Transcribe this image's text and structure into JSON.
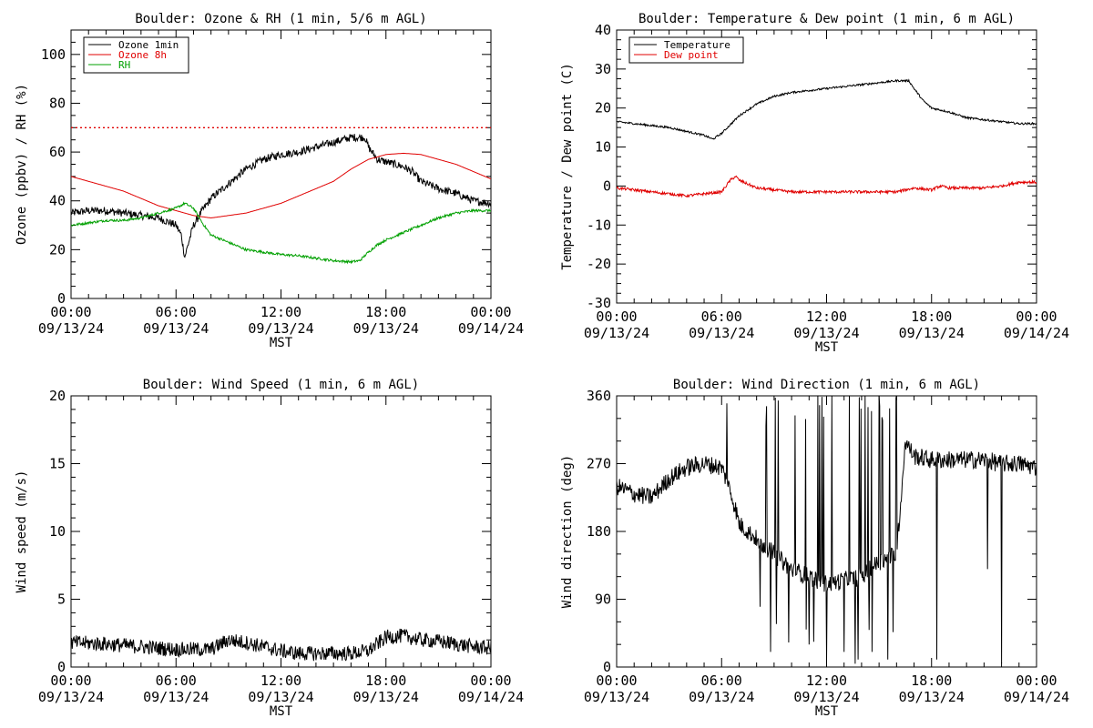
{
  "xlabel": "MST",
  "chart_data": [
    {
      "id": "ozone",
      "type": "line",
      "title": "Boulder: Ozone & RH (1 min, 5/6 m AGL)",
      "ylabel": "Ozone (ppbv) / RH (%)",
      "xlabel": "MST",
      "xlim": [
        0,
        24
      ],
      "ylim": [
        0,
        110
      ],
      "yticks": [
        0,
        20,
        40,
        60,
        80,
        100
      ],
      "xtick_labels": [
        [
          "00:00",
          "09/13/24"
        ],
        [
          "06:00",
          "09/13/24"
        ],
        [
          "12:00",
          "09/13/24"
        ],
        [
          "18:00",
          "09/13/24"
        ],
        [
          "00:00",
          "09/14/24"
        ]
      ],
      "reference_line": {
        "y": 70,
        "color": "#e00000",
        "style": "dotted"
      },
      "legend": {
        "position": "top-left",
        "entries": [
          {
            "label": "Ozone 1min",
            "color": "#000000"
          },
          {
            "label": "Ozone 8h",
            "color": "#e00000"
          },
          {
            "label": "RH",
            "color": "#00a000"
          }
        ]
      },
      "series": [
        {
          "name": "Ozone 1min",
          "color": "#000000",
          "noise": 1.6,
          "x": [
            0,
            1,
            2,
            3,
            4,
            5,
            6,
            6.3,
            6.5,
            6.8,
            7,
            7.5,
            8,
            9,
            10,
            11,
            12,
            13,
            14,
            15,
            16,
            16.8,
            17,
            17.5,
            18,
            18.5,
            19,
            19.5,
            20,
            21,
            22,
            23,
            24
          ],
          "y": [
            35,
            36,
            36,
            35,
            34,
            33,
            30,
            26,
            17,
            25,
            30,
            36,
            41,
            47,
            53,
            57,
            59,
            60,
            62,
            64,
            66,
            66,
            62,
            57,
            56,
            55,
            54,
            52,
            48,
            45,
            43,
            40,
            39
          ]
        },
        {
          "name": "Ozone 8h",
          "color": "#e00000",
          "noise": 0,
          "x": [
            0,
            1,
            2,
            3,
            4,
            5,
            6,
            6.5,
            7,
            8,
            9,
            10,
            11,
            12,
            13,
            14,
            15,
            16,
            17,
            18,
            19,
            20,
            21,
            22,
            23,
            24
          ],
          "y": [
            50,
            48,
            46,
            44,
            41,
            38,
            36,
            35,
            34,
            33,
            34,
            35,
            37,
            39,
            42,
            45,
            48,
            53,
            57,
            59,
            59.5,
            59,
            57,
            55,
            52,
            49
          ]
        },
        {
          "name": "RH",
          "color": "#00a000",
          "noise": 0.5,
          "x": [
            0,
            1,
            2,
            3,
            4,
            5,
            5.5,
            6,
            6.5,
            7,
            7.5,
            8,
            9,
            10,
            11,
            12,
            13,
            14,
            15,
            16,
            16.5,
            17,
            17.5,
            18,
            19,
            20,
            21,
            22,
            23,
            24
          ],
          "y": [
            30,
            31,
            32,
            32,
            33,
            35,
            36,
            37,
            39,
            37,
            31,
            26,
            23,
            20,
            19,
            18,
            17.5,
            16.5,
            15.5,
            15,
            15.5,
            19,
            22,
            24,
            27,
            30,
            33,
            35,
            36,
            36
          ]
        }
      ]
    },
    {
      "id": "temp",
      "type": "line",
      "title": "Boulder: Temperature & Dew point (1 min, 6 m AGL)",
      "ylabel": "Temperature / Dew point (C)",
      "xlabel": "MST",
      "xlim": [
        0,
        24
      ],
      "ylim": [
        -30,
        40
      ],
      "yticks": [
        -30,
        -20,
        -10,
        0,
        10,
        20,
        30,
        40
      ],
      "xtick_labels": [
        [
          "00:00",
          "09/13/24"
        ],
        [
          "06:00",
          "09/13/24"
        ],
        [
          "12:00",
          "09/13/24"
        ],
        [
          "18:00",
          "09/13/24"
        ],
        [
          "00:00",
          "09/14/24"
        ]
      ],
      "legend": {
        "position": "top-left",
        "entries": [
          {
            "label": "Temperature",
            "color": "#000000"
          },
          {
            "label": "Dew point",
            "color": "#e00000"
          }
        ]
      },
      "series": [
        {
          "name": "Temperature",
          "color": "#000000",
          "noise": 0.25,
          "x": [
            0,
            1,
            2,
            3,
            4,
            5,
            5.5,
            6,
            7,
            8,
            9,
            10,
            11,
            12,
            13,
            14,
            15,
            16,
            16.7,
            17,
            17.5,
            18,
            19,
            20,
            21,
            22,
            23,
            24
          ],
          "y": [
            16.5,
            16,
            15.5,
            15,
            14,
            13,
            12,
            13.5,
            18,
            21,
            23,
            24,
            24.5,
            25,
            25.5,
            26,
            26.5,
            27,
            27,
            25,
            22,
            20,
            19,
            17.5,
            17,
            16.5,
            16,
            16
          ]
        },
        {
          "name": "Dew point",
          "color": "#e00000",
          "noise": 0.35,
          "x": [
            0,
            1,
            2,
            3,
            4,
            5,
            6,
            6.5,
            6.8,
            7,
            7.5,
            8,
            9,
            10,
            11,
            12,
            13,
            14,
            15,
            16,
            17,
            18,
            18.5,
            19,
            20,
            21,
            22,
            23,
            24
          ],
          "y": [
            -0.5,
            -1,
            -1.5,
            -2,
            -2.5,
            -2,
            -1.5,
            1.5,
            2.5,
            1.5,
            0.5,
            -0.5,
            -1,
            -1.5,
            -1.5,
            -1.5,
            -1.5,
            -1.5,
            -1.5,
            -1.5,
            -0.5,
            -1,
            0,
            -0.5,
            -0.5,
            -0.5,
            0,
            1,
            1
          ]
        }
      ]
    },
    {
      "id": "wspd",
      "type": "line",
      "title": "Boulder: Wind Speed (1 min, 6 m AGL)",
      "ylabel": "Wind speed (m/s)",
      "xlabel": "MST",
      "xlim": [
        0,
        24
      ],
      "ylim": [
        0,
        20
      ],
      "yticks": [
        0,
        5,
        10,
        15,
        20
      ],
      "xtick_labels": [
        [
          "00:00",
          "09/13/24"
        ],
        [
          "06:00",
          "09/13/24"
        ],
        [
          "12:00",
          "09/13/24"
        ],
        [
          "18:00",
          "09/13/24"
        ],
        [
          "00:00",
          "09/14/24"
        ]
      ],
      "series": [
        {
          "name": "Wind speed",
          "color": "#000000",
          "noise": 0.55,
          "x": [
            0,
            2,
            4,
            6,
            8,
            9,
            10,
            11,
            12,
            13,
            14,
            15,
            16,
            17,
            18,
            19,
            20,
            21,
            22,
            23,
            24
          ],
          "y": [
            1.8,
            1.7,
            1.5,
            1.3,
            1.3,
            2.0,
            1.8,
            1.5,
            1.2,
            1.0,
            1.0,
            1.0,
            1.0,
            1.2,
            2.2,
            2.3,
            2.0,
            1.9,
            1.7,
            1.5,
            1.4
          ]
        }
      ]
    },
    {
      "id": "wdir",
      "type": "line",
      "title": "Boulder: Wind Direction (1 min, 6 m AGL)",
      "ylabel": "Wind direction (deg)",
      "xlabel": "MST",
      "xlim": [
        0,
        24
      ],
      "ylim": [
        0,
        360
      ],
      "yticks": [
        0,
        90,
        180,
        270,
        360
      ],
      "xtick_labels": [
        [
          "00:00",
          "09/13/24"
        ],
        [
          "06:00",
          "09/13/24"
        ],
        [
          "12:00",
          "09/13/24"
        ],
        [
          "18:00",
          "09/13/24"
        ],
        [
          "00:00",
          "09/14/24"
        ]
      ],
      "series": [
        {
          "name": "Wind direction",
          "color": "#000000",
          "noise": 12,
          "x": [
            0,
            1,
            2,
            3,
            4,
            5,
            6,
            6.4,
            6.8,
            7,
            8,
            9,
            10,
            11,
            12,
            13,
            14,
            15,
            16,
            16.5,
            17,
            18,
            19,
            20,
            21,
            22,
            23,
            24
          ],
          "y": [
            240,
            230,
            225,
            250,
            265,
            270,
            265,
            240,
            210,
            190,
            170,
            150,
            130,
            120,
            110,
            115,
            120,
            140,
            150,
            300,
            280,
            275,
            275,
            275,
            275,
            270,
            270,
            265
          ],
          "spikes": [
            [
              6.3,
              350
            ],
            [
              8.2,
              80
            ],
            [
              8.8,
              20
            ],
            [
              10.2,
              340
            ],
            [
              11.0,
              30
            ],
            [
              11.5,
              360
            ],
            [
              12.0,
              10
            ],
            [
              12.3,
              360
            ],
            [
              13.0,
              20
            ],
            [
              13.3,
              360
            ],
            [
              13.8,
              10
            ],
            [
              14.2,
              360
            ],
            [
              14.6,
              20
            ],
            [
              15.0,
              360
            ],
            [
              15.5,
              10
            ],
            [
              16.0,
              360
            ],
            [
              18.3,
              10
            ],
            [
              21.2,
              130
            ],
            [
              22.0,
              5
            ]
          ]
        }
      ]
    }
  ]
}
